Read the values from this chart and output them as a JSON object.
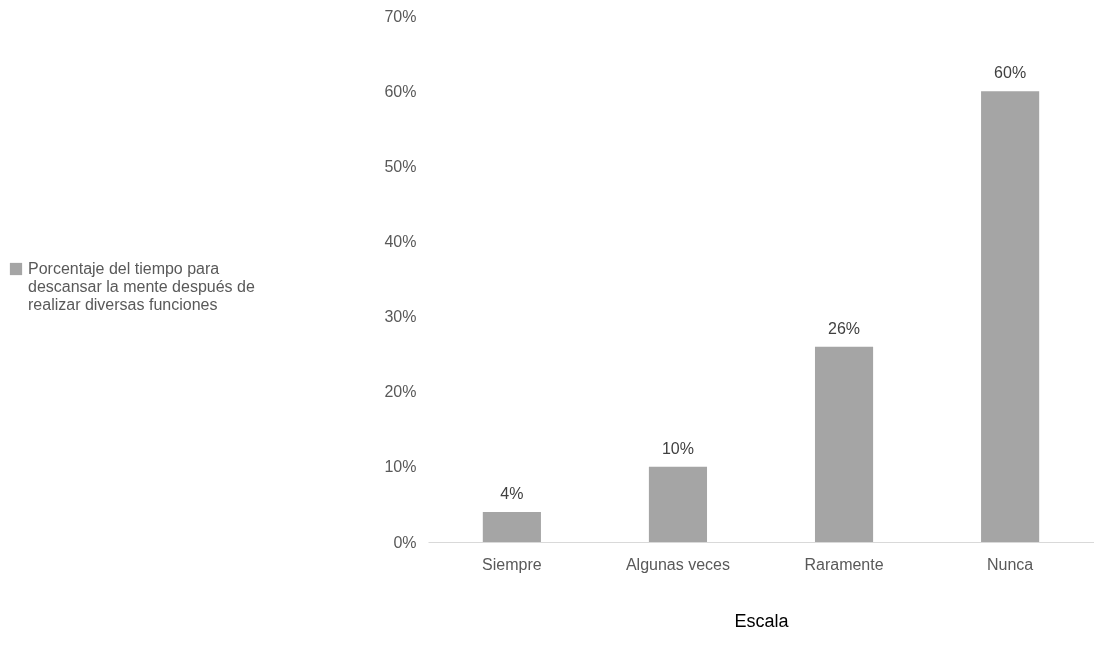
{
  "chart_data": {
    "type": "bar",
    "categories": [
      "Siempre",
      "Algunas veces",
      "Raramente",
      "Nunca"
    ],
    "series": [
      {
        "name": "Porcentaje del tiempo para descansar la mente después de realizar diversas funciones",
        "color": "#a5a5a5",
        "values": [
          4,
          10,
          26,
          60
        ],
        "value_labels": [
          "4%",
          "10%",
          "26%",
          "60%"
        ]
      }
    ],
    "xlabel": "Escala",
    "ylim": [
      0,
      70
    ],
    "yticks": [
      {
        "value": 0,
        "label": "0%"
      },
      {
        "value": 10,
        "label": "10%"
      },
      {
        "value": 20,
        "label": "20%"
      },
      {
        "value": 30,
        "label": "30%"
      },
      {
        "value": 40,
        "label": "40%"
      },
      {
        "value": 50,
        "label": "50%"
      },
      {
        "value": 60,
        "label": "60%"
      },
      {
        "value": 70,
        "label": "70%"
      }
    ],
    "grid": false,
    "legend": "left"
  }
}
